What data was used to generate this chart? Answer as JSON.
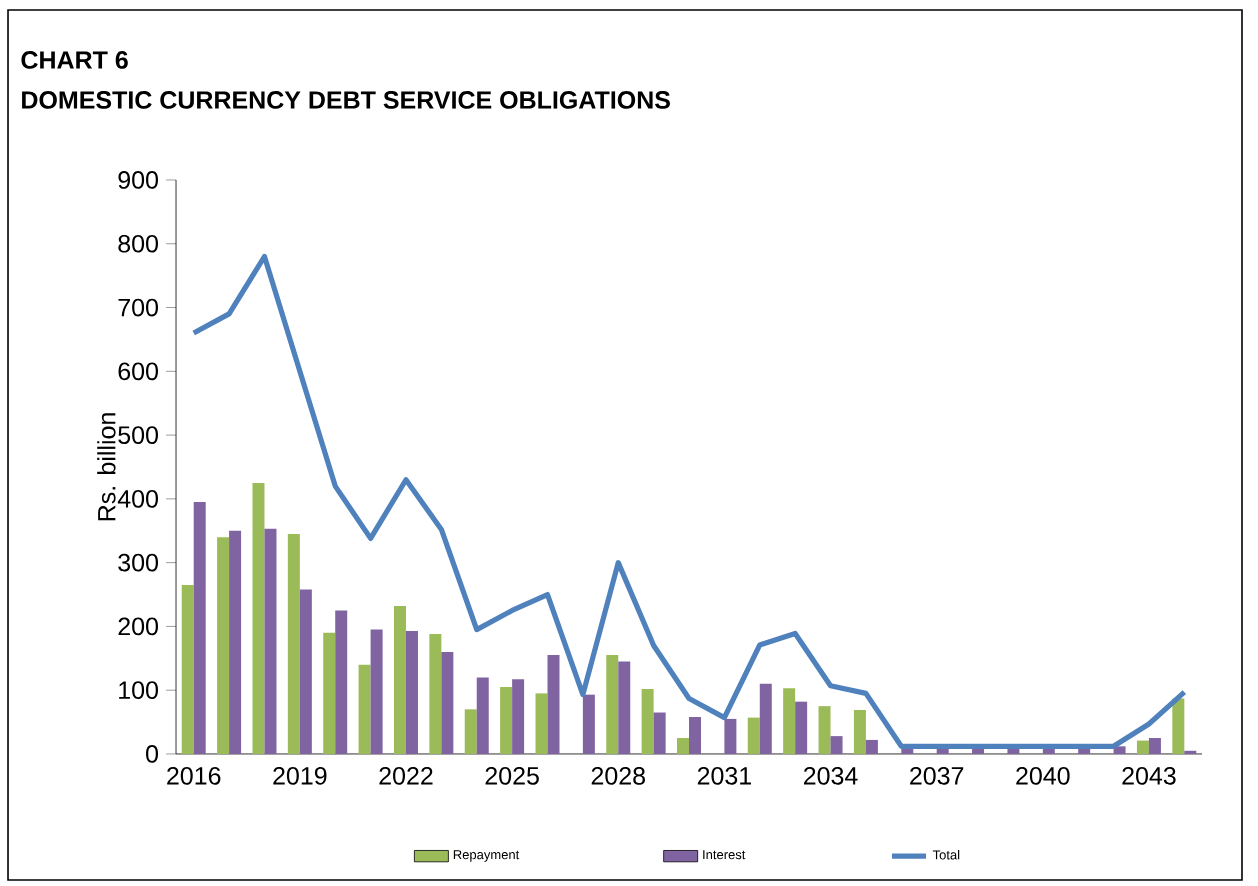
{
  "chart_data": {
    "type": "bar",
    "title": "CHART 6",
    "subtitle": "DOMESTIC CURRENCY DEBT SERVICE OBLIGATIONS",
    "ylabel": "Rs. billion",
    "categories": [
      "2016",
      null,
      null,
      "2019",
      null,
      null,
      "2022",
      null,
      null,
      "2025",
      null,
      null,
      "2028",
      null,
      null,
      "2031",
      null,
      null,
      "2034",
      null,
      null,
      "2037",
      null,
      null,
      "2040",
      null,
      null,
      "2043",
      null
    ],
    "series": [
      {
        "name": "Repayment",
        "color": "#9bbb59",
        "values": [
          265,
          340,
          425,
          345,
          190,
          140,
          232,
          188,
          70,
          105,
          95,
          0,
          155,
          102,
          25,
          0,
          57,
          103,
          75,
          69,
          0,
          0,
          0,
          0,
          0,
          0,
          0,
          21,
          87
        ]
      },
      {
        "name": "Interest",
        "color": "#8064a2",
        "values": [
          395,
          350,
          353,
          258,
          225,
          195,
          193,
          160,
          120,
          117,
          155,
          93,
          145,
          65,
          58,
          55,
          110,
          82,
          28,
          22,
          12,
          12,
          12,
          12,
          12,
          12,
          12,
          25,
          5
        ]
      },
      {
        "name": "Total",
        "type": "line",
        "color": "#4f81bd",
        "values": [
          660,
          690,
          780,
          600,
          420,
          338,
          430,
          352,
          195,
          225,
          250,
          93,
          300,
          170,
          87,
          57,
          171,
          189,
          107,
          95,
          12,
          12,
          12,
          12,
          12,
          12,
          12,
          47,
          97
        ]
      }
    ],
    "ylim": [
      0,
      900
    ],
    "yticks": [
      0,
      100,
      200,
      300,
      400,
      500,
      600,
      700,
      800,
      900
    ],
    "legend": "bottom"
  }
}
